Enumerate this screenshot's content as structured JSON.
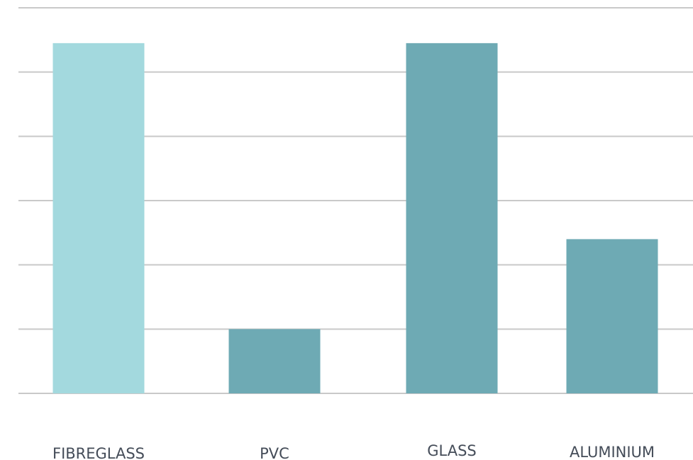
{
  "chart_data": {
    "type": "bar",
    "categories": [
      "FIBREGLASS",
      "PVC",
      "GLASS",
      "ALUMINIUM"
    ],
    "values": [
      5.45,
      1.0,
      5.45,
      2.4
    ],
    "ylim": [
      0,
      6
    ],
    "grid": true,
    "legend": "none",
    "colors": {
      "bars": [
        "#a3d9de",
        "#6eaab4",
        "#6eaab4",
        "#6eaab4"
      ],
      "grid": "#c9c9c9",
      "label": "#444c58"
    }
  }
}
